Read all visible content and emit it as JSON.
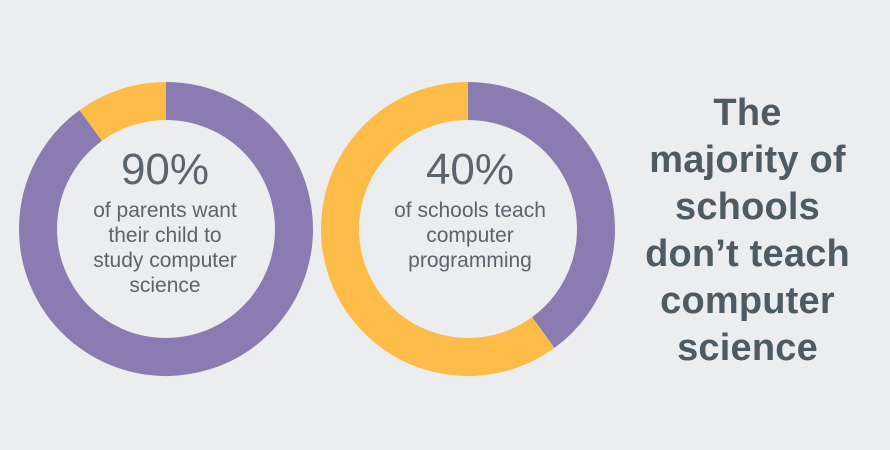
{
  "colors": {
    "background": "#ecedef",
    "purple": "#8a7cb0",
    "yellow": "#fdbb47",
    "text": "#5b646c",
    "headline": "#4f5b62"
  },
  "chart_data": [
    {
      "type": "pie",
      "donut": true,
      "slices": [
        {
          "value": 90,
          "color": "#8a7cb0"
        },
        {
          "value": 10,
          "color": "#fdbb47"
        }
      ],
      "center_value": "90%",
      "center_label": [
        "of parents want",
        "their child to",
        "study computer",
        "science"
      ]
    },
    {
      "type": "pie",
      "donut": true,
      "slices": [
        {
          "value": 40,
          "color": "#8a7cb0"
        },
        {
          "value": 60,
          "color": "#fdbb47"
        }
      ],
      "center_value": "40%",
      "center_label": [
        "of schools teach",
        "computer",
        "programming"
      ]
    }
  ],
  "headline": {
    "lines": [
      "The",
      "majority of",
      "schools",
      "don’t teach",
      "computer",
      "science"
    ]
  }
}
